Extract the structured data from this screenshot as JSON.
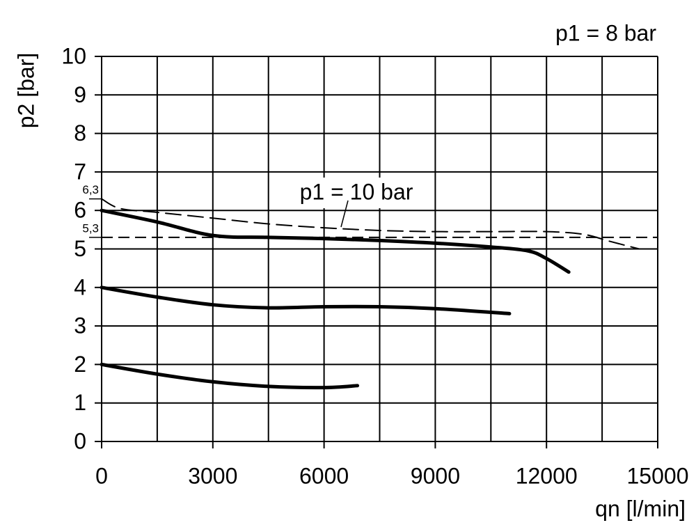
{
  "chart_data": {
    "type": "line",
    "subtitle": "p1 = 8 bar",
    "y_label": "p2 [bar]",
    "x_label": "qn [l/min]",
    "xlim": [
      0,
      15000
    ],
    "xticks": [
      0,
      3000,
      6000,
      9000,
      12000,
      15000
    ],
    "xminorticks": [
      1500,
      4500,
      7500,
      10500,
      13500
    ],
    "ylim": [
      0,
      10
    ],
    "yticks": [
      0,
      1,
      2,
      3,
      4,
      5,
      6,
      7,
      8,
      9,
      10
    ],
    "grid": true,
    "extra_yticks": [
      {
        "value": 6.3,
        "label": "6,3"
      },
      {
        "value": 5.3,
        "label": "5,3"
      }
    ],
    "hline": 5.3,
    "series": [
      {
        "color": "#000000",
        "dash": false,
        "x": [
          0,
          1500,
          3000,
          4500,
          6000,
          7500,
          9000,
          10500,
          11500,
          12000,
          12600
        ],
        "values": [
          6.0,
          5.7,
          5.35,
          5.3,
          5.27,
          5.22,
          5.15,
          5.05,
          4.95,
          4.75,
          4.4
        ]
      },
      {
        "color": "#000000",
        "dash": false,
        "x": [
          0,
          1500,
          3000,
          4500,
          6000,
          7500,
          9000,
          11000
        ],
        "values": [
          4.0,
          3.75,
          3.55,
          3.47,
          3.5,
          3.5,
          3.45,
          3.32
        ]
      },
      {
        "color": "#000000",
        "dash": false,
        "x": [
          0,
          1500,
          3000,
          4500,
          6000,
          6900
        ],
        "values": [
          2.0,
          1.75,
          1.55,
          1.43,
          1.4,
          1.45
        ]
      },
      {
        "name": "p1 = 10 bar",
        "color": "#000000",
        "dash": true,
        "x": [
          0,
          500,
          1500,
          3000,
          4500,
          6000,
          7500,
          9000,
          10500,
          12000,
          13000,
          13700,
          14500
        ],
        "values": [
          6.3,
          6.05,
          5.95,
          5.8,
          5.65,
          5.55,
          5.48,
          5.45,
          5.45,
          5.45,
          5.38,
          5.2,
          5.0
        ]
      }
    ]
  }
}
